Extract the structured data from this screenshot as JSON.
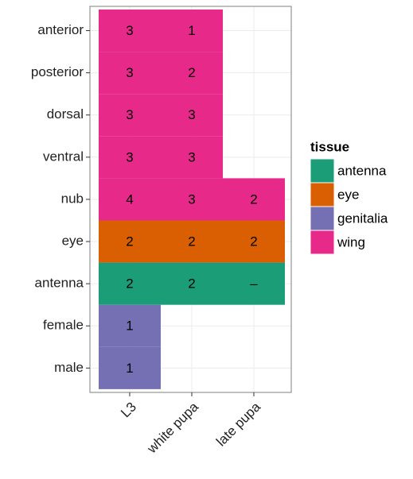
{
  "chart_data": {
    "type": "tile",
    "x_categories": [
      "L3",
      "white pupa",
      "late pupa"
    ],
    "y_categories": [
      "anterior",
      "posterior",
      "dorsal",
      "ventral",
      "nub",
      "eye",
      "antenna",
      "female",
      "male"
    ],
    "legend_title": "tissue",
    "legend_position": "right",
    "grid": true,
    "series": [
      {
        "name": "antenna",
        "color": "#1b9e77"
      },
      {
        "name": "eye",
        "color": "#d95f02"
      },
      {
        "name": "genitalia",
        "color": "#7570b3"
      },
      {
        "name": "wing",
        "color": "#e7298a"
      }
    ],
    "tiles": [
      {
        "x": "L3",
        "y": "anterior",
        "tissue": "wing",
        "label": 3
      },
      {
        "x": "white pupa",
        "y": "anterior",
        "tissue": "wing",
        "label": 1
      },
      {
        "x": "L3",
        "y": "posterior",
        "tissue": "wing",
        "label": 3
      },
      {
        "x": "white pupa",
        "y": "posterior",
        "tissue": "wing",
        "label": 2
      },
      {
        "x": "L3",
        "y": "dorsal",
        "tissue": "wing",
        "label": 3
      },
      {
        "x": "white pupa",
        "y": "dorsal",
        "tissue": "wing",
        "label": 3
      },
      {
        "x": "L3",
        "y": "ventral",
        "tissue": "wing",
        "label": 3
      },
      {
        "x": "white pupa",
        "y": "ventral",
        "tissue": "wing",
        "label": 3
      },
      {
        "x": "L3",
        "y": "nub",
        "tissue": "wing",
        "label": 4
      },
      {
        "x": "white pupa",
        "y": "nub",
        "tissue": "wing",
        "label": 3
      },
      {
        "x": "late pupa",
        "y": "nub",
        "tissue": "wing",
        "label": 2
      },
      {
        "x": "L3",
        "y": "eye",
        "tissue": "eye",
        "label": 2
      },
      {
        "x": "white pupa",
        "y": "eye",
        "tissue": "eye",
        "label": 2
      },
      {
        "x": "late pupa",
        "y": "eye",
        "tissue": "eye",
        "label": 2
      },
      {
        "x": "L3",
        "y": "antenna",
        "tissue": "antenna",
        "label": 2
      },
      {
        "x": "white pupa",
        "y": "antenna",
        "tissue": "antenna",
        "label": 2
      },
      {
        "x": "late pupa",
        "y": "antenna",
        "tissue": "antenna",
        "label": "–"
      },
      {
        "x": "L3",
        "y": "female",
        "tissue": "genitalia",
        "label": 1
      },
      {
        "x": "L3",
        "y": "male",
        "tissue": "genitalia",
        "label": 1
      }
    ]
  }
}
